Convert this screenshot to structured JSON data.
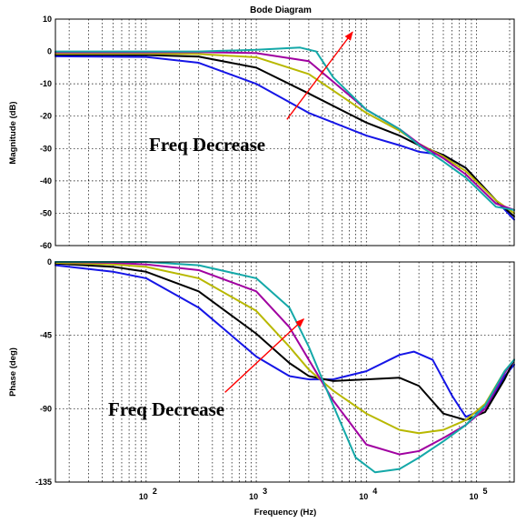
{
  "chart_data": {
    "type": "line",
    "title": "Bode Diagram",
    "xlabel": "Frequency (Hz)",
    "xscale": "log",
    "xlim": [
      15,
      220000
    ],
    "x_tick_values": [
      100,
      1000,
      10000,
      100000
    ],
    "x_tick_labels": [
      {
        "base": "10",
        "exp": "2"
      },
      {
        "base": "10",
        "exp": "3"
      },
      {
        "base": "10",
        "exp": "4"
      },
      {
        "base": "10",
        "exp": "5"
      }
    ],
    "grid": true,
    "colors": {
      "blue": "#1515e6",
      "black": "#000000",
      "olive": "#b8b800",
      "purple": "#a000a0",
      "teal": "#14a8a8",
      "arrow": "#ff0000"
    },
    "panels": [
      {
        "id": "magnitude",
        "ylabel": "Magnitude (dB)",
        "ylim": [
          -60,
          10
        ],
        "y_ticks": [
          10,
          0,
          -10,
          -20,
          -30,
          -40,
          -50,
          -60
        ],
        "annotation": "Freq Decrease",
        "series": [
          {
            "color": "blue",
            "x": [
              15,
              100,
              300,
              1000,
              3000,
              10000,
              20000,
              30000,
              50000,
              80000,
              150000,
              220000
            ],
            "y": [
              -1.5,
              -1.7,
              -3.5,
              -10,
              -19,
              -26,
              -29,
              -31,
              -32,
              -36,
              -46,
              -52
            ]
          },
          {
            "color": "black",
            "x": [
              15,
              100,
              300,
              1000,
              3000,
              10000,
              20000,
              30000,
              50000,
              80000,
              150000,
              220000
            ],
            "y": [
              -1,
              -1.1,
              -1.6,
              -5,
              -13,
              -22,
              -26,
              -29,
              -32,
              -36,
              -46,
              -51
            ]
          },
          {
            "color": "olive",
            "x": [
              15,
              100,
              300,
              1000,
              3000,
              10000,
              20000,
              30000,
              50000,
              80000,
              150000,
              220000
            ],
            "y": [
              -0.7,
              -0.7,
              -0.8,
              -1.8,
              -7,
              -19,
              -24.5,
              -28.5,
              -32.5,
              -37,
              -46,
              -50
            ]
          },
          {
            "color": "purple",
            "x": [
              15,
              100,
              300,
              1000,
              3000,
              10000,
              20000,
              30000,
              50000,
              80000,
              150000,
              220000
            ],
            "y": [
              -0.3,
              -0.3,
              -0.2,
              -0.5,
              -3,
              -18,
              -24,
              -28.5,
              -33,
              -38,
              -47,
              -49
            ]
          },
          {
            "color": "teal",
            "x": [
              15,
              100,
              300,
              1000,
              2500,
              3500,
              5000,
              10000,
              20000,
              30000,
              50000,
              80000,
              150000,
              220000
            ],
            "y": [
              0,
              0,
              0,
              0.5,
              1.2,
              0,
              -8,
              -18,
              -24,
              -29,
              -34,
              -39,
              -48,
              -49
            ]
          }
        ],
        "arrow": {
          "from": {
            "x": 1900,
            "y": -21
          },
          "to": {
            "x": 7500,
            "y": 6
          }
        }
      },
      {
        "id": "phase",
        "ylabel": "Phase (deg)",
        "ylim": [
          -135,
          0
        ],
        "y_ticks": [
          0,
          -45,
          -90,
          -135
        ],
        "annotation": "Freq Decrease",
        "series": [
          {
            "color": "blue",
            "x": [
              15,
              50,
              100,
              300,
              1000,
              2000,
              3000,
              5000,
              10000,
              20000,
              27000,
              40000,
              60000,
              80000,
              120000,
              180000,
              220000
            ],
            "y": [
              -2,
              -6,
              -10,
              -28,
              -58,
              -70,
              -72,
              -72,
              -67,
              -57,
              -55,
              -60,
              -82,
              -95,
              -90,
              -70,
              -63
            ]
          },
          {
            "color": "black",
            "x": [
              15,
              50,
              100,
              300,
              1000,
              2000,
              3000,
              5000,
              10000,
              20000,
              30000,
              50000,
              80000,
              120000,
              180000,
              220000
            ],
            "y": [
              -1,
              -3,
              -6,
              -18,
              -44,
              -62,
              -70,
              -73,
              -72,
              -71,
              -76,
              -93,
              -97,
              -92,
              -72,
              -60
            ]
          },
          {
            "color": "olive",
            "x": [
              15,
              50,
              100,
              300,
              1000,
              2000,
              3000,
              5000,
              10000,
              20000,
              30000,
              50000,
              80000,
              120000,
              180000,
              220000
            ],
            "y": [
              -0.5,
              -1.5,
              -3,
              -10,
              -30,
              -52,
              -66,
              -79,
              -93,
              -103,
              -105,
              -103,
              -97,
              -87,
              -67,
              -60
            ]
          },
          {
            "color": "purple",
            "x": [
              15,
              50,
              100,
              300,
              1000,
              2000,
              3000,
              5000,
              10000,
              20000,
              30000,
              50000,
              80000,
              120000,
              180000,
              220000
            ],
            "y": [
              0,
              -0.5,
              -1.5,
              -5,
              -18,
              -40,
              -60,
              -85,
              -112,
              -118,
              -116,
              -108,
              -100,
              -90,
              -68,
              -60
            ]
          },
          {
            "color": "teal",
            "x": [
              15,
              100,
              300,
              1000,
              2000,
              3000,
              5000,
              8000,
              12000,
              20000,
              30000,
              50000,
              80000,
              120000,
              180000,
              220000
            ],
            "y": [
              0,
              0,
              -2,
              -10,
              -28,
              -52,
              -88,
              -120,
              -129,
              -127,
              -120,
              -110,
              -100,
              -88,
              -67,
              -60
            ]
          }
        ],
        "arrow": {
          "from": {
            "x": 520,
            "y": -80
          },
          "to": {
            "x": 2700,
            "y": -35
          }
        }
      }
    ]
  }
}
